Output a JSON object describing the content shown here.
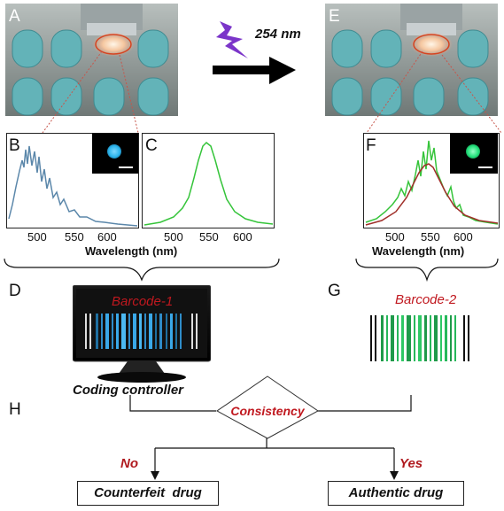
{
  "panels": {
    "A": "A",
    "B": "B",
    "C": "C",
    "D": "D",
    "E": "E",
    "F": "F",
    "G": "G",
    "H": "H"
  },
  "excitation": {
    "label": "254 nm"
  },
  "spectra": {
    "tick_labels": [
      "500",
      "550",
      "600"
    ],
    "xlabel": "Wavelength (nm)"
  },
  "barcode1": {
    "label": "Barcode-1"
  },
  "barcode2": {
    "label": "Barcode-2"
  },
  "controller": {
    "label": "Coding controller"
  },
  "decision": {
    "label": "Consistency",
    "no": "No",
    "yes": "Yes"
  },
  "outcomes": {
    "counterfeit": "Counterfeit  drug",
    "authentic": "Authentic drug"
  },
  "colors": {
    "blue_curve": "#5b87aa",
    "green_curve": "#35c43a",
    "red_fit": "#a0302a",
    "accent_red": "#c0181f",
    "blue_emission": "#2bb4ec",
    "green_emission": "#22e07a"
  }
}
